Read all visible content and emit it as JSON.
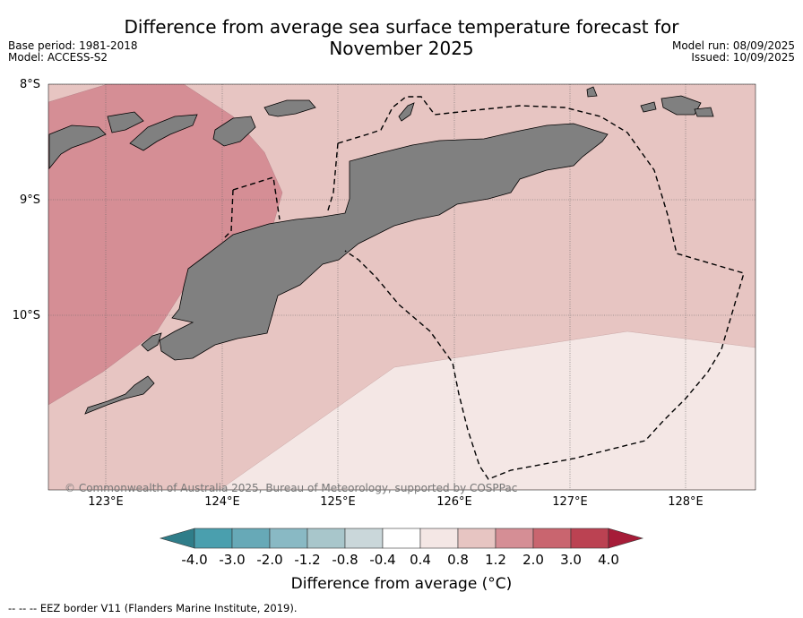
{
  "title_line1": "Difference from average sea surface temperature forecast for",
  "title_line2": "November 2025",
  "meta_left": {
    "base_period": "Base period: 1981-2018",
    "model": "Model: ACCESS-S2"
  },
  "meta_right": {
    "model_run": "Model run: 08/09/2025",
    "issued": "Issued: 10/09/2025"
  },
  "map": {
    "lat_labels": [
      "8°S",
      "9°S",
      "10°S"
    ],
    "lon_labels": [
      "123°E",
      "124°E",
      "125°E",
      "126°E",
      "127°E",
      "128°E"
    ],
    "copyright": "© Commonwealth of Australia 2025, Bureau of Meteorology, supported by COSPPac",
    "land_color": "#808080",
    "anomaly_colors": {
      "1.2_to_2.0": "#d58e95",
      "0.8_to_1.2": "#e7c5c2",
      "0.4_to_0.8": "#f4e7e5"
    }
  },
  "colorbar": {
    "tick_labels": [
      "-4.0",
      "-3.0",
      "-2.0",
      "-1.2",
      "-0.8",
      "-0.4",
      "0.4",
      "0.8",
      "1.2",
      "2.0",
      "3.0",
      "4.0"
    ],
    "colors": [
      "#2f7d89",
      "#4a9fae",
      "#67a9b7",
      "#89b9c4",
      "#a8c6cb",
      "#cad7da",
      "#ffffff",
      "#f4e7e5",
      "#e7c5c2",
      "#d58e95",
      "#c9656f",
      "#bb4252",
      "#a61c38"
    ],
    "label": "Difference from average (°C)"
  },
  "footer": "--  --  -- EEZ border V11 (Flanders Marine Institute, 2019)."
}
